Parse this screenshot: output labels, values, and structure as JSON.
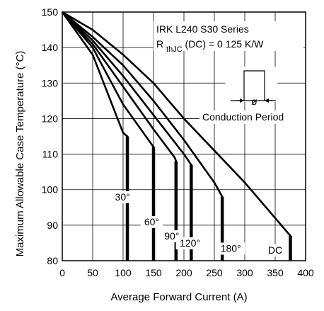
{
  "chart_data": {
    "type": "line",
    "xlabel": "Average Forward Current (A)",
    "ylabel": "Maximum Allowable Case Temperature (°C)",
    "xlim": [
      0,
      400
    ],
    "ylim": [
      80,
      150
    ],
    "xticks": [
      "0",
      "50",
      "100",
      "150",
      "200",
      "250",
      "300",
      "350",
      "400"
    ],
    "yticks": [
      "80",
      "90",
      "100",
      "110",
      "120",
      "130",
      "140",
      "150"
    ],
    "grid": true,
    "annotation": {
      "line1": "IRK L240  S30 Series",
      "line2_prefix": "R",
      "line2_sub": "thJC",
      "line2_suffix": "(DC) = 0 125 K/W",
      "inset_label": "Conduction Period",
      "inset_symbol": "ø"
    },
    "series": [
      {
        "name": "30°",
        "x": [
          0,
          50,
          100,
          107,
          107
        ],
        "y": [
          150,
          138,
          116,
          115,
          80
        ]
      },
      {
        "name": "60°",
        "x": [
          0,
          50,
          100,
          150,
          150
        ],
        "y": [
          150,
          140,
          124,
          112,
          80
        ]
      },
      {
        "name": "90°",
        "x": [
          0,
          50,
          100,
          150,
          185,
          187,
          187
        ],
        "y": [
          150,
          141,
          129,
          117,
          109,
          108,
          80
        ]
      },
      {
        "name": "120°",
        "x": [
          0,
          50,
          100,
          150,
          200,
          212,
          212
        ],
        "y": [
          150,
          142,
          132,
          121,
          110,
          107,
          80
        ]
      },
      {
        "name": "180°",
        "x": [
          0,
          50,
          100,
          150,
          200,
          250,
          263,
          263
        ],
        "y": [
          150,
          143,
          135,
          125,
          114,
          102,
          98,
          80
        ]
      },
      {
        "name": "DC",
        "x": [
          0,
          50,
          100,
          150,
          200,
          250,
          300,
          350,
          375,
          375
        ],
        "y": [
          150,
          145,
          138,
          130,
          120,
          111,
          102,
          92,
          87,
          80
        ]
      }
    ],
    "labels": [
      {
        "text": "30°",
        "x": 99,
        "y": 97
      },
      {
        "text": "60°",
        "x": 147,
        "y": 90
      },
      {
        "text": "90°",
        "x": 180,
        "y": 86
      },
      {
        "text": "120°",
        "x": 210,
        "y": 84
      },
      {
        "text": "180°",
        "x": 277,
        "y": 82.5
      },
      {
        "text": "DC",
        "x": 350,
        "y": 82
      }
    ]
  }
}
